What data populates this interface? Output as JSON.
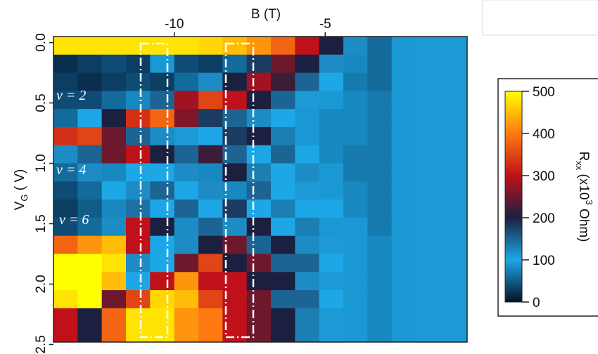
{
  "chart_data": {
    "type": "heatmap",
    "xlabel": "B (T)",
    "ylabel": {
      "main": "V",
      "sub": "G",
      "end": " ( V)"
    },
    "xlim": [
      -14,
      -0.3
    ],
    "xticks": [
      -10,
      -5
    ],
    "ylim": [
      2.48,
      -0.05
    ],
    "yticks": [
      {
        "value": 0,
        "label": "0.0"
      },
      0.5,
      {
        "value": 1,
        "label": "1.0"
      },
      1.5,
      {
        "value": 2,
        "label": "2.0"
      },
      2.5
    ],
    "xbins": [
      -14,
      -13.2,
      -12.4,
      -11.6,
      -10.8,
      -10,
      -9.2,
      -8.4,
      -7.6,
      -6.8,
      -6,
      -5.2,
      -4.4,
      -3.6,
      -2.8,
      -2,
      -0.3
    ],
    "ybins": [
      -0.05,
      0.1,
      0.25,
      0.4,
      0.55,
      0.7,
      0.85,
      1.0,
      1.15,
      1.3,
      1.45,
      1.6,
      1.75,
      1.9,
      2.05,
      2.2,
      2.48
    ],
    "z": [
      [
        480,
        480,
        480,
        480,
        480,
        480,
        470,
        450,
        420,
        380,
        300,
        200,
        120,
        60,
        90,
        110
      ],
      [
        20,
        30,
        40,
        30,
        90,
        40,
        30,
        60,
        180,
        250,
        200,
        120,
        80,
        60,
        90,
        110
      ],
      [
        30,
        20,
        30,
        40,
        30,
        60,
        120,
        200,
        280,
        220,
        150,
        100,
        70,
        60,
        90,
        110
      ],
      [
        40,
        40,
        60,
        80,
        150,
        280,
        350,
        300,
        200,
        150,
        110,
        90,
        80,
        70,
        90,
        110
      ],
      [
        60,
        100,
        200,
        330,
        380,
        260,
        180,
        150,
        120,
        100,
        90,
        80,
        80,
        70,
        90,
        110
      ],
      [
        330,
        350,
        250,
        150,
        120,
        110,
        100,
        180,
        200,
        130,
        90,
        80,
        80,
        70,
        90,
        110
      ],
      [
        120,
        150,
        250,
        300,
        200,
        150,
        220,
        150,
        100,
        150,
        100,
        80,
        70,
        70,
        90,
        110
      ],
      [
        60,
        120,
        80,
        100,
        100,
        120,
        80,
        200,
        130,
        100,
        120,
        90,
        70,
        70,
        90,
        110
      ],
      [
        40,
        60,
        100,
        120,
        150,
        100,
        120,
        80,
        150,
        100,
        110,
        90,
        80,
        70,
        90,
        110
      ],
      [
        30,
        50,
        80,
        140,
        100,
        150,
        100,
        180,
        100,
        130,
        100,
        100,
        80,
        70,
        90,
        110
      ],
      [
        40,
        60,
        120,
        300,
        200,
        120,
        150,
        120,
        200,
        100,
        130,
        90,
        90,
        70,
        90,
        110
      ],
      [
        380,
        420,
        450,
        300,
        100,
        120,
        200,
        250,
        150,
        200,
        120,
        110,
        90,
        80,
        90,
        110
      ],
      [
        500,
        500,
        480,
        120,
        100,
        250,
        350,
        200,
        250,
        150,
        150,
        100,
        90,
        80,
        90,
        110
      ],
      [
        500,
        500,
        450,
        100,
        300,
        420,
        300,
        300,
        200,
        200,
        120,
        110,
        90,
        80,
        90,
        110
      ],
      [
        480,
        500,
        250,
        350,
        470,
        450,
        350,
        300,
        250,
        150,
        150,
        100,
        90,
        80,
        90,
        110
      ],
      [
        300,
        200,
        380,
        480,
        480,
        420,
        400,
        300,
        250,
        200,
        130,
        110,
        90,
        80,
        90,
        110
      ]
    ],
    "clim": [
      0,
      500
    ],
    "colorscale": [
      "#04102a",
      "#1da7e6",
      "#1b2040",
      "#c0101a",
      "#ff7a10",
      "#ffff00"
    ],
    "colorbar_ticks": [
      0,
      100,
      200,
      300,
      400,
      500
    ],
    "colorbar_label": {
      "main": "R",
      "sub": "xx",
      "mid": " (x10",
      "sup": "3",
      "end": " Ohm)"
    },
    "annotations": [
      "ν = 2",
      "ν = 4",
      "ν = 6"
    ]
  }
}
